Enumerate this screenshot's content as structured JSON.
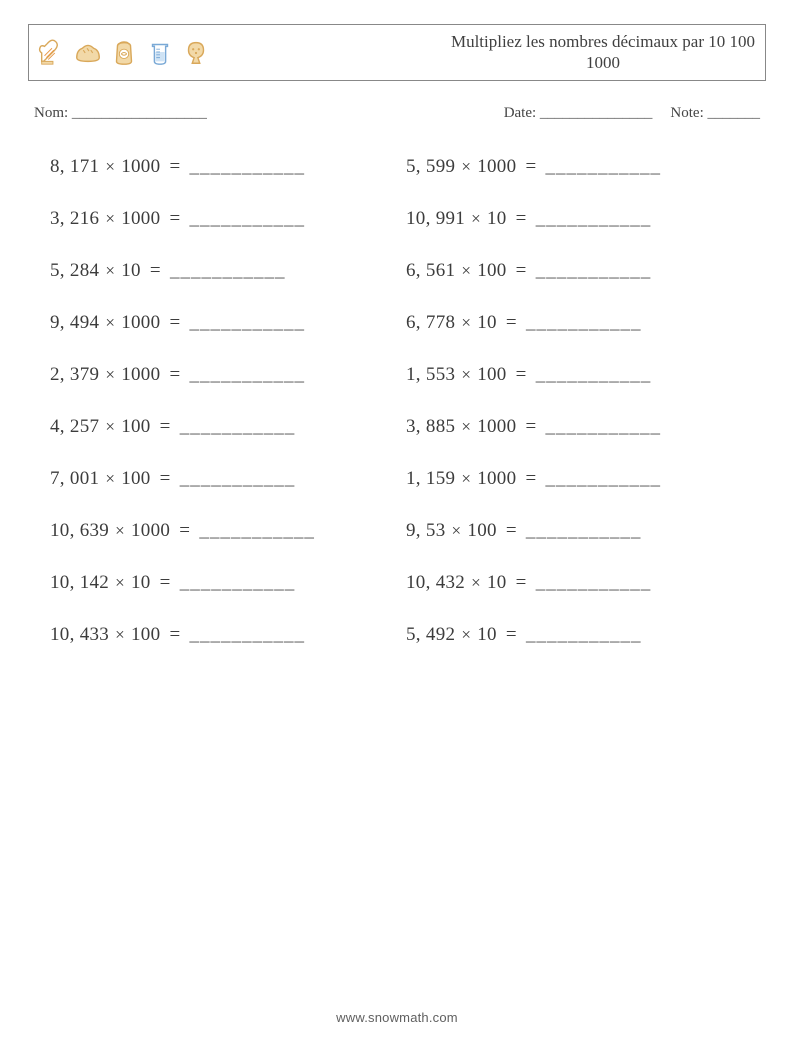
{
  "header": {
    "title_line1": "Multipliez les nombres décimaux par 10 100",
    "title_line2": "1000",
    "icons": [
      "mitt-icon",
      "bread-icon",
      "flour-icon",
      "measure-icon",
      "cookie-icon"
    ],
    "icon_colors": {
      "outline": "#d9a85a",
      "light": "#f2d9a8",
      "accent1": "#e89a4a",
      "accent2": "#7aa9d6"
    }
  },
  "meta": {
    "name_label": "Nom:",
    "date_label": "Date:",
    "score_label": "Note:",
    "name_blank": "__________________",
    "date_blank": "_______________",
    "score_blank": "_______"
  },
  "problems": {
    "blank": "___________",
    "multiply_symbol": "×",
    "columns": [
      [
        {
          "a": "8, 171",
          "b": "1000"
        },
        {
          "a": "3, 216",
          "b": "1000"
        },
        {
          "a": "5, 284",
          "b": "10"
        },
        {
          "a": "9, 494",
          "b": "1000"
        },
        {
          "a": "2, 379",
          "b": "1000"
        },
        {
          "a": "4, 257",
          "b": "100"
        },
        {
          "a": "7, 001",
          "b": "100"
        },
        {
          "a": "10, 639",
          "b": "1000"
        },
        {
          "a": "10, 142",
          "b": "10"
        },
        {
          "a": "10, 433",
          "b": "100"
        }
      ],
      [
        {
          "a": "5, 599",
          "b": "1000"
        },
        {
          "a": "10, 991",
          "b": "10"
        },
        {
          "a": "6, 561",
          "b": "100"
        },
        {
          "a": "6, 778",
          "b": "10"
        },
        {
          "a": "1, 553",
          "b": "100"
        },
        {
          "a": "3, 885",
          "b": "1000"
        },
        {
          "a": "1, 159",
          "b": "1000"
        },
        {
          "a": "9, 53",
          "b": "100"
        },
        {
          "a": "10, 432",
          "b": "10"
        },
        {
          "a": "5, 492",
          "b": "10"
        }
      ]
    ]
  },
  "footer": {
    "url": "www.snowmath.com"
  },
  "style": {
    "page_bg": "#ffffff",
    "text_color": "#424242",
    "border_color": "#888888",
    "title_fontsize": 17,
    "problem_fontsize": 19,
    "meta_fontsize": 15,
    "footer_fontsize": 13
  }
}
